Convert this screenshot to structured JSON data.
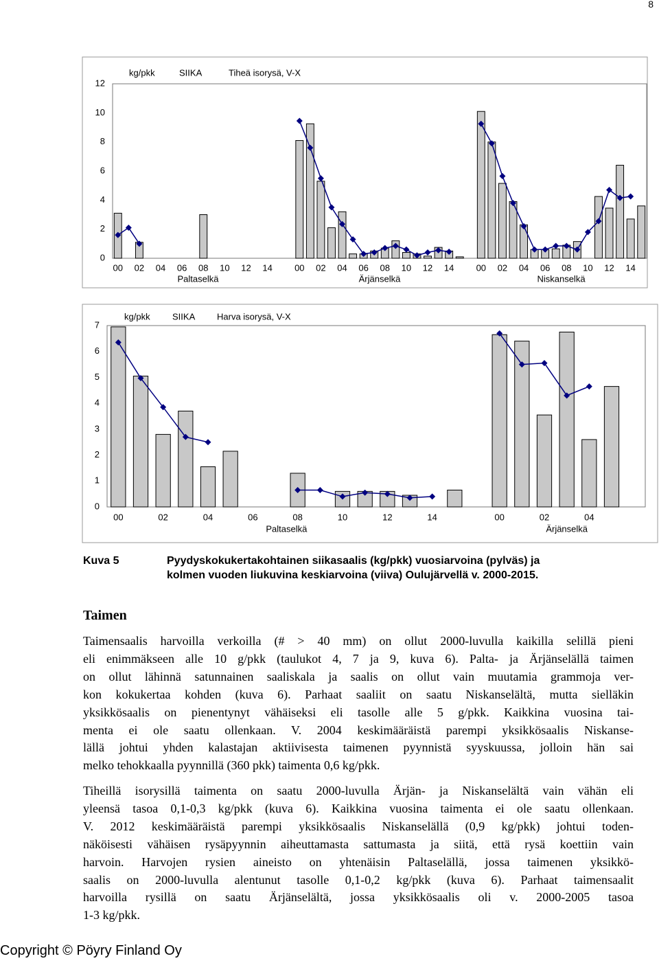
{
  "page_number": "8",
  "chart_data": [
    {
      "type": "bar_line",
      "title": [
        "kg/pkk",
        "SIIKA",
        "Tiheä isorysä, V-X"
      ],
      "bar_color": "#c8c8c8",
      "line_color": "#000080",
      "ylim": [
        0,
        12
      ],
      "yticks": [
        0,
        2,
        4,
        6,
        8,
        10,
        12
      ],
      "grid": false,
      "groups": [
        {
          "label": "Paltaselkä",
          "categories": [
            "00",
            null,
            "02",
            null,
            "04",
            null,
            "06",
            null,
            "08",
            null,
            "10",
            null,
            "12",
            null,
            "14",
            null
          ],
          "bars": [
            3.1,
            null,
            1.1,
            null,
            null,
            null,
            null,
            null,
            3.0,
            null,
            null,
            null,
            null,
            null,
            null,
            null
          ],
          "line": [
            1.6,
            2.1,
            1.0,
            null,
            null,
            null,
            null,
            null,
            null,
            null,
            null,
            null,
            null,
            null,
            null,
            null
          ]
        },
        {
          "label": "Ärjänselkä",
          "categories": [
            "00",
            null,
            "02",
            null,
            "04",
            null,
            "06",
            null,
            "08",
            null,
            "10",
            null,
            "12",
            null,
            "14",
            null
          ],
          "bars": [
            8.1,
            9.25,
            5.3,
            2.1,
            3.2,
            0.3,
            0.3,
            0.5,
            0.7,
            1.2,
            0.4,
            0.3,
            0.15,
            0.75,
            0.5,
            0.1
          ],
          "line": [
            9.45,
            7.6,
            5.5,
            3.5,
            2.35,
            1.3,
            0.3,
            0.4,
            0.7,
            0.85,
            0.6,
            0.2,
            0.4,
            0.55,
            0.45,
            null
          ]
        },
        {
          "label": "Niskanselkä",
          "categories": [
            "00",
            null,
            "02",
            null,
            "04",
            null,
            "06",
            null,
            "08",
            null,
            "10",
            null,
            "12",
            null,
            "14",
            null
          ],
          "bars": [
            10.1,
            8.0,
            5.15,
            3.9,
            2.3,
            0.6,
            0.6,
            0.65,
            0.9,
            1.15,
            null,
            4.25,
            3.45,
            6.4,
            2.7,
            3.6
          ],
          "line": [
            9.25,
            7.9,
            5.65,
            3.8,
            2.2,
            0.6,
            0.6,
            0.85,
            0.85,
            0.6,
            1.8,
            2.55,
            4.7,
            4.15,
            4.25,
            null
          ]
        }
      ]
    },
    {
      "type": "bar_line",
      "title": [
        "kg/pkk",
        "SIIKA",
        "Harva isorysä, V-X"
      ],
      "bar_color": "#c8c8c8",
      "line_color": "#000080",
      "ylim": [
        0,
        7
      ],
      "yticks": [
        0,
        1,
        2,
        3,
        4,
        5,
        6,
        7
      ],
      "grid": false,
      "groups": [
        {
          "label": "Paltaselkä",
          "categories": [
            "00",
            null,
            "02",
            null,
            "04",
            null,
            "06",
            null,
            "08",
            null,
            "10",
            null,
            "12",
            null,
            "14",
            null
          ],
          "bars": [
            6.95,
            5.05,
            2.8,
            3.7,
            1.55,
            2.15,
            null,
            null,
            1.3,
            null,
            0.6,
            0.6,
            0.6,
            0.45,
            null,
            0.65
          ],
          "line": [
            6.35,
            4.97,
            3.85,
            2.7,
            2.5,
            null,
            null,
            null,
            0.65,
            0.65,
            0.4,
            0.55,
            0.5,
            0.35,
            0.4,
            null
          ]
        },
        {
          "label": "Ärjänselkä",
          "categories": [
            "00",
            null,
            "02",
            null,
            "04",
            null,
            null
          ],
          "bars": [
            6.65,
            6.4,
            3.55,
            6.75,
            2.6,
            4.65,
            null
          ],
          "line": [
            6.7,
            5.5,
            5.55,
            4.3,
            4.65,
            null,
            null
          ]
        }
      ]
    }
  ],
  "caption": {
    "label": "Kuva 5",
    "lines": [
      "Pyydyskokukertakohtainen siikasaalis (kg/pkk) vuosiarvoina (pylväs) ja",
      "kolmen vuoden liukuvina keskiarvoina (viiva) Oulujärvellä v. 2000-2015."
    ]
  },
  "section": {
    "heading": "Taimen",
    "paragraphs": [
      [
        "Taimensaalis harvoilla verkoilla (# > 40 mm) on ollut 2000-luvulla kaikilla selillä pieni",
        "eli enimmäkseen alle 10 g/pkk (taulukot 4, 7 ja 9, kuva 6). Palta- ja Ärjänselällä taimen",
        "on ollut lähinnä satunnainen saaliskala ja saalis on ollut vain muutamia grammoja ver-",
        "kon kokukertaa kohden (kuva 6). Parhaat saaliit on saatu Niskanselältä, mutta sielläkin",
        "yksikkösaalis on pienentynyt vähäiseksi eli tasolle alle 5 g/pkk. Kaikkina vuosina tai-",
        "menta ei ole saatu ollenkaan. V. 2004 keskimääräistä parempi yksikkösaalis Niskanse-",
        "lällä johtui yhden kalastajan aktiivisesta taimenen pyynnistä syyskuussa, jolloin hän sai",
        "melko tehokkaalla pyynnillä (360 pkk) taimenta 0,6 kg/pkk."
      ],
      [
        "Tiheillä isorysillä taimenta on saatu 2000-luvulla Ärjän- ja Niskanselältä vain vähän eli",
        "yleensä tasoa 0,1-0,3 kg/pkk (kuva 6). Kaikkina vuosina taimenta ei ole saatu ollenkaan.",
        "V. 2012 keskimääräistä parempi yksikkösaalis Niskanselällä (0,9 kg/pkk) johtui toden-",
        "näköisesti vähäisen rysäpyynnin aiheuttamasta sattumasta ja siitä, että rysä koettiin vain",
        "harvoin. Harvojen rysien aineisto on yhtenäisin Paltaselällä, jossa taimenen yksikkö-",
        "saalis on 2000-luvulla alentunut tasolle 0,1-0,2 kg/pkk (kuva 6). Parhaat taimensaalit",
        "harvoilla rysillä on saatu Ärjänselältä, jossa yksikkösaalis oli v. 2000-2005 tasoa",
        "1-3 kg/pkk."
      ]
    ]
  },
  "footer": "Copyright © Pöyry Finland Oy"
}
